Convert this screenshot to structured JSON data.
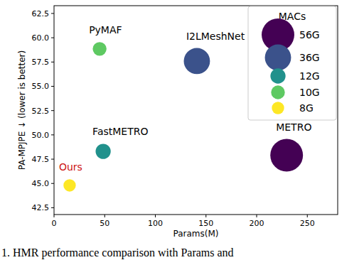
{
  "chart_data": {
    "type": "scatter",
    "x_label": "Params(M)",
    "y_label": "PA-MPJPE ↓  (lower is better)",
    "caption": "1. HMR performance comparison with Params and",
    "x": [
      45,
      141,
      48.5,
      229.6,
      15.4
    ],
    "values": [
      58.85,
      57.6,
      48.3,
      47.9,
      44.8
    ],
    "point_labels": [
      "PyMAF",
      "I2LMeshNet",
      "FastMETRO",
      "METRO",
      "Ours"
    ],
    "sizes": [
      10,
      36,
      12,
      56,
      8
    ],
    "colors": [
      "#5ec962",
      "#3b528b",
      "#21918c",
      "#440154",
      "#fde725"
    ],
    "xlim": [
      0,
      280
    ],
    "ylim": [
      41.8,
      63.3
    ],
    "xticks": [
      0,
      50,
      100,
      150,
      200,
      250
    ],
    "yticks": [
      42.5,
      {
        "value": 45,
        "label": "45.0"
      },
      47.5,
      {
        "value": 50,
        "label": "50.0"
      },
      52.5,
      {
        "value": 55,
        "label": "55.0"
      },
      57.5,
      {
        "value": 60,
        "label": "60.0"
      },
      62.5
    ],
    "grid": false,
    "legend": "upper right",
    "size_legend": {
      "title": "MACs",
      "labels": [
        "56G",
        "36G",
        "12G",
        "10G",
        "8G"
      ],
      "values": [
        56,
        36,
        12,
        10,
        8
      ],
      "colors": [
        "#440154",
        "#3b528b",
        "#21918c",
        "#5ec962",
        "#fde725"
      ]
    }
  }
}
